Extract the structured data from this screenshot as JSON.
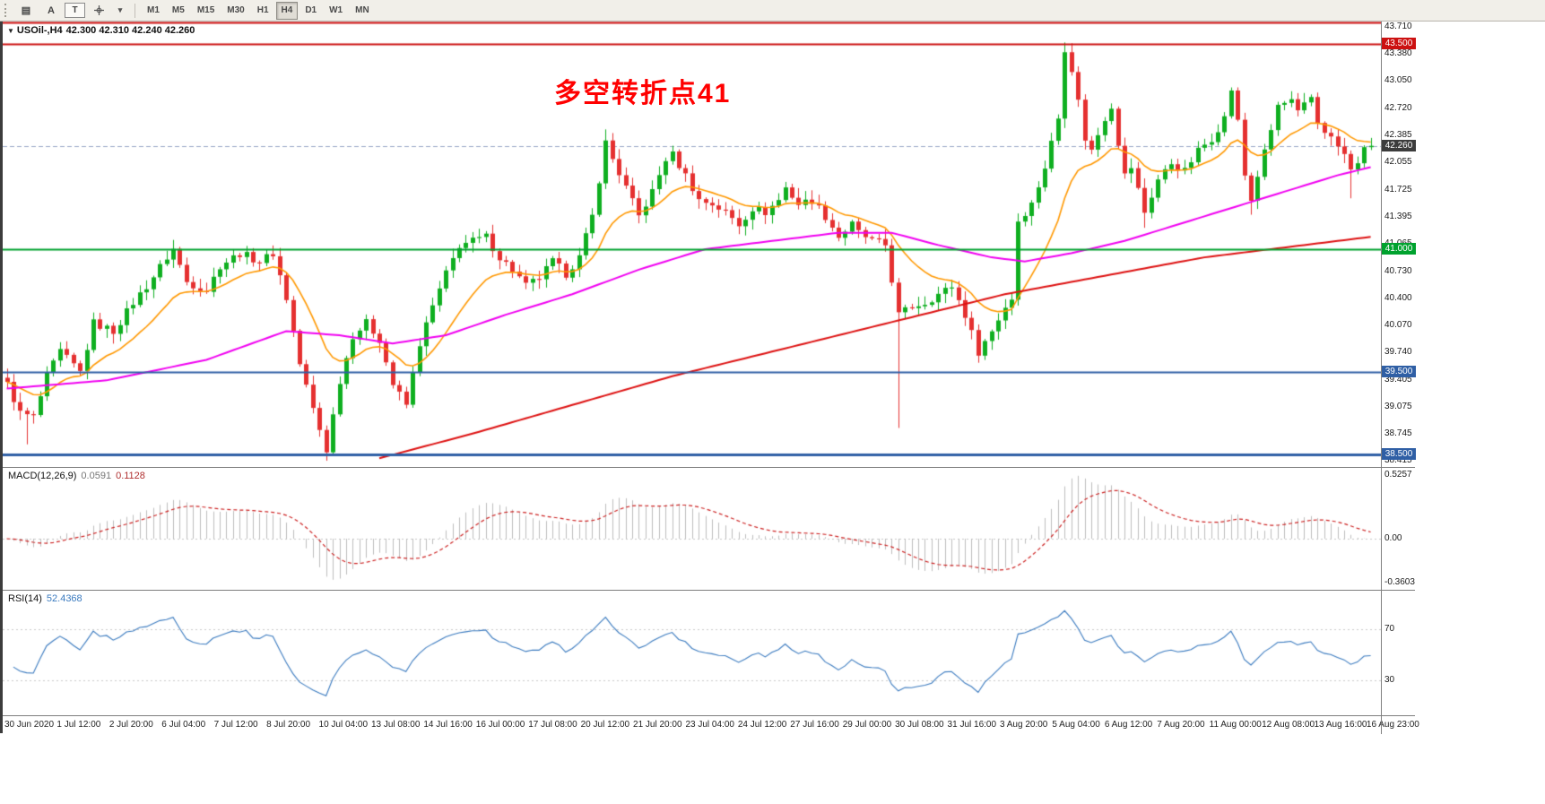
{
  "toolbar": {
    "label_a": "A",
    "label_t": "T",
    "timeframes": [
      "M1",
      "M5",
      "M15",
      "M30",
      "H1",
      "H4",
      "D1",
      "W1",
      "MN"
    ],
    "active_timeframe": "H4"
  },
  "main_chart": {
    "header_symbol": "USOil-,H4",
    "header_ohlc": "42.300 42.310 42.240 42.260",
    "annotation": "多空转折点41",
    "price_ticks": [
      "43.710",
      "43.380",
      "43.050",
      "42.720",
      "42.385",
      "42.055",
      "41.725",
      "41.395",
      "41.065",
      "40.730",
      "40.400",
      "40.070",
      "39.740",
      "39.405",
      "39.075",
      "38.745",
      "38.415"
    ],
    "hlines": [
      {
        "price": 43.77,
        "color": "#cc1111",
        "width": 2
      },
      {
        "price": 43.5,
        "color": "#cc1111",
        "width": 2,
        "label": "43.500"
      },
      {
        "price": 41.0,
        "color": "#00a22e",
        "width": 2,
        "label": "41.000"
      },
      {
        "price": 39.5,
        "color": "#2f5fa5",
        "width": 2,
        "label": "39.500"
      },
      {
        "price": 38.5,
        "color": "#2f5fa5",
        "width": 3,
        "label": "38.500"
      }
    ],
    "bid": {
      "price": 42.26,
      "label": "42.260"
    }
  },
  "macd": {
    "label": "MACD(12,26,9)",
    "value_main": "0.0591",
    "value_signal": "0.1128",
    "scale": [
      "0.5257",
      "0.00",
      "-0.3603"
    ]
  },
  "rsi": {
    "label": "RSI(14)",
    "value": "52.4368",
    "levels": [
      "70",
      "30"
    ]
  },
  "time_axis": {
    "labels": [
      "30 Jun 2020",
      "1 Jul 12:00",
      "2 Jul 20:00",
      "6 Jul 04:00",
      "7 Jul 12:00",
      "8 Jul 20:00",
      "10 Jul 04:00",
      "13 Jul 08:00",
      "14 Jul 16:00",
      "16 Jul 00:00",
      "17 Jul 08:00",
      "20 Jul 12:00",
      "21 Jul 20:00",
      "23 Jul 04:00",
      "24 Jul 12:00",
      "27 Jul 16:00",
      "29 Jul 00:00",
      "30 Jul 08:00",
      "31 Jul 16:00",
      "3 Aug 20:00",
      "5 Aug 04:00",
      "6 Aug 12:00",
      "7 Aug 20:00",
      "11 Aug 00:00",
      "12 Aug 08:00",
      "13 Aug 16:00",
      "16 Aug 23:00"
    ]
  },
  "colors": {
    "candle_up": "#0faf20",
    "candle_down": "#e53030",
    "ma_fast": "#ff9800",
    "ma_mid": "#f000f0",
    "ma_slow": "#dd1111",
    "macd_hist": "#bdbdbd",
    "macd_signal": "#cc2222",
    "rsi_line": "#3a7abf",
    "bid_line": "#9aa7c7",
    "bid_tag": "#3c3c3c",
    "annotation": "#ff0000"
  },
  "chart_data": {
    "type": "candlestick",
    "symbol": "USOil",
    "period": "H4",
    "bars": 206,
    "ohlc_current": {
      "open": 42.3,
      "high": 42.31,
      "low": 42.24,
      "close": 42.26
    },
    "ylim": [
      38.35,
      43.775
    ],
    "close_waypoints": [
      [
        0,
        39.35
      ],
      [
        2,
        39.0
      ],
      [
        4,
        38.95
      ],
      [
        6,
        39.45
      ],
      [
        8,
        39.75
      ],
      [
        11,
        39.5
      ],
      [
        13,
        40.1
      ],
      [
        16,
        40.0
      ],
      [
        19,
        40.35
      ],
      [
        21,
        40.55
      ],
      [
        24,
        40.9
      ],
      [
        25,
        41.0
      ],
      [
        27,
        40.6
      ],
      [
        30,
        40.5
      ],
      [
        32,
        40.8
      ],
      [
        35,
        40.95
      ],
      [
        38,
        40.85
      ],
      [
        40,
        40.95
      ],
      [
        42,
        40.4
      ],
      [
        44,
        39.6
      ],
      [
        46,
        39.05
      ],
      [
        48,
        38.55
      ],
      [
        50,
        39.4
      ],
      [
        52,
        39.95
      ],
      [
        54,
        40.1
      ],
      [
        56,
        39.9
      ],
      [
        58,
        39.35
      ],
      [
        60,
        39.1
      ],
      [
        62,
        39.85
      ],
      [
        64,
        40.3
      ],
      [
        66,
        40.7
      ],
      [
        68,
        41.05
      ],
      [
        70,
        41.1
      ],
      [
        72,
        41.15
      ],
      [
        74,
        40.9
      ],
      [
        76,
        40.75
      ],
      [
        78,
        40.55
      ],
      [
        80,
        40.65
      ],
      [
        82,
        40.85
      ],
      [
        84,
        40.7
      ],
      [
        86,
        40.9
      ],
      [
        88,
        41.4
      ],
      [
        90,
        42.3
      ],
      [
        91,
        42.1
      ],
      [
        93,
        41.75
      ],
      [
        95,
        41.4
      ],
      [
        97,
        41.7
      ],
      [
        99,
        42.1
      ],
      [
        100,
        42.15
      ],
      [
        102,
        41.9
      ],
      [
        104,
        41.6
      ],
      [
        106,
        41.55
      ],
      [
        108,
        41.45
      ],
      [
        110,
        41.3
      ],
      [
        112,
        41.5
      ],
      [
        114,
        41.45
      ],
      [
        116,
        41.6
      ],
      [
        117,
        41.75
      ],
      [
        119,
        41.55
      ],
      [
        121,
        41.6
      ],
      [
        123,
        41.4
      ],
      [
        125,
        41.15
      ],
      [
        127,
        41.3
      ],
      [
        128,
        41.2
      ],
      [
        130,
        41.1
      ],
      [
        132,
        41.05
      ],
      [
        134,
        40.2
      ],
      [
        136,
        40.3
      ],
      [
        138,
        40.35
      ],
      [
        140,
        40.45
      ],
      [
        142,
        40.55
      ],
      [
        144,
        40.2
      ],
      [
        146,
        39.75
      ],
      [
        148,
        40.0
      ],
      [
        150,
        40.3
      ],
      [
        151,
        40.4
      ],
      [
        152,
        41.35
      ],
      [
        154,
        41.55
      ],
      [
        156,
        42.0
      ],
      [
        158,
        42.6
      ],
      [
        159,
        43.45
      ],
      [
        160,
        43.2
      ],
      [
        161,
        42.8
      ],
      [
        162,
        42.35
      ],
      [
        163,
        42.2
      ],
      [
        165,
        42.6
      ],
      [
        166,
        42.75
      ],
      [
        167,
        42.3
      ],
      [
        168,
        41.9
      ],
      [
        169,
        42.0
      ],
      [
        171,
        41.45
      ],
      [
        173,
        41.85
      ],
      [
        175,
        42.05
      ],
      [
        177,
        41.95
      ],
      [
        179,
        42.2
      ],
      [
        181,
        42.35
      ],
      [
        183,
        42.6
      ],
      [
        184,
        42.95
      ],
      [
        185,
        42.55
      ],
      [
        186,
        41.9
      ],
      [
        187,
        41.6
      ],
      [
        188,
        41.9
      ],
      [
        190,
        42.45
      ],
      [
        191,
        42.75
      ],
      [
        193,
        42.8
      ],
      [
        194,
        42.65
      ],
      [
        196,
        42.85
      ],
      [
        197,
        42.55
      ],
      [
        199,
        42.35
      ],
      [
        201,
        42.15
      ],
      [
        202,
        41.95
      ],
      [
        204,
        42.2
      ],
      [
        205,
        42.26
      ]
    ],
    "special_wicks": [
      {
        "bar": 3,
        "low": 38.62
      },
      {
        "bar": 48,
        "low": 38.42
      },
      {
        "bar": 90,
        "high": 42.46
      },
      {
        "bar": 134,
        "low": 38.82
      },
      {
        "bar": 159,
        "high": 43.52
      },
      {
        "bar": 171,
        "low": 41.26
      },
      {
        "bar": 187,
        "low": 41.42
      },
      {
        "bar": 202,
        "low": 41.62
      }
    ],
    "ma_fast_period": 14,
    "ma_magenta_waypoints": [
      [
        0,
        39.3
      ],
      [
        15,
        39.4
      ],
      [
        30,
        39.65
      ],
      [
        42,
        40.0
      ],
      [
        50,
        39.95
      ],
      [
        58,
        39.85
      ],
      [
        66,
        39.95
      ],
      [
        75,
        40.2
      ],
      [
        85,
        40.45
      ],
      [
        95,
        40.75
      ],
      [
        105,
        41.0
      ],
      [
        115,
        41.1
      ],
      [
        125,
        41.2
      ],
      [
        133,
        41.2
      ],
      [
        140,
        41.05
      ],
      [
        148,
        40.9
      ],
      [
        153,
        40.85
      ],
      [
        160,
        40.95
      ],
      [
        168,
        41.1
      ],
      [
        176,
        41.3
      ],
      [
        184,
        41.5
      ],
      [
        192,
        41.7
      ],
      [
        200,
        41.9
      ],
      [
        205,
        42.0
      ]
    ],
    "ma_red_waypoints": [
      [
        56,
        38.45
      ],
      [
        70,
        38.75
      ],
      [
        85,
        39.1
      ],
      [
        100,
        39.45
      ],
      [
        115,
        39.75
      ],
      [
        130,
        40.05
      ],
      [
        140,
        40.25
      ],
      [
        150,
        40.45
      ],
      [
        160,
        40.6
      ],
      [
        170,
        40.75
      ],
      [
        180,
        40.9
      ],
      [
        190,
        41.0
      ],
      [
        200,
        41.1
      ],
      [
        205,
        41.15
      ]
    ]
  }
}
